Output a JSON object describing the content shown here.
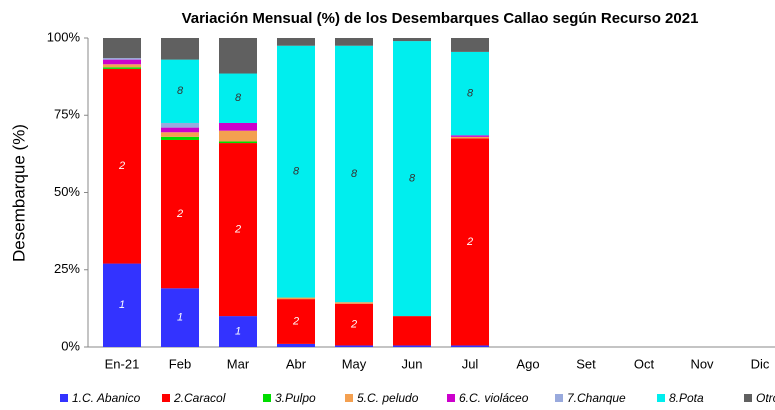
{
  "chart_data": {
    "type": "stacked_bar",
    "title": "Variación Mensual (%) de los Desembarques Callao según Recurso 2021",
    "y_label": "Desembarque (%)",
    "categories": [
      "En-21",
      "Feb",
      "Mar",
      "Abr",
      "May",
      "Jun",
      "Jul",
      "Ago",
      "Set",
      "Oct",
      "Nov",
      "Dic"
    ],
    "ylim": [
      0,
      100
    ],
    "yticks": [
      {
        "value": 0,
        "label": "0%"
      },
      {
        "value": 25,
        "label": "25%"
      },
      {
        "value": 50,
        "label": "50%"
      },
      {
        "value": 75,
        "label": "75%"
      },
      {
        "value": 100,
        "label": "100%"
      }
    ],
    "grid": false,
    "legend": "bottom",
    "series": [
      {
        "name": "1.C. Abanico",
        "label": "1",
        "color": "#3333ff",
        "values": [
          27,
          19,
          10,
          1,
          0.5,
          0.5,
          0.5,
          null,
          null,
          null,
          null,
          null
        ]
      },
      {
        "name": "2.Caracol",
        "label": "2",
        "color": "#ff0000",
        "values": [
          63,
          48,
          56,
          14.5,
          13.5,
          9.5,
          67,
          null,
          null,
          null,
          null,
          null
        ]
      },
      {
        "name": "3.Pulpo",
        "color": "#00dd00",
        "values": [
          0.5,
          1,
          0.5,
          0,
          0,
          0,
          0,
          null,
          null,
          null,
          null,
          null
        ]
      },
      {
        "name": "5.C. peludo",
        "color": "#f4a050",
        "values": [
          1,
          1.5,
          3.5,
          0.5,
          0.5,
          0,
          0.5,
          null,
          null,
          null,
          null,
          null
        ]
      },
      {
        "name": "6.C. violáceo",
        "color": "#cc00cc",
        "values": [
          1.5,
          1.5,
          2.5,
          0,
          0,
          0,
          0.5,
          null,
          null,
          null,
          null,
          null
        ]
      },
      {
        "name": "7.Chanque",
        "color": "#99aadd",
        "values": [
          0.5,
          1.5,
          0,
          0,
          0,
          0,
          0,
          null,
          null,
          null,
          null,
          null
        ]
      },
      {
        "name": "8.Pota",
        "label": "8",
        "color": "#00eeee",
        "values": [
          0,
          20.5,
          16,
          81.5,
          83,
          89,
          27,
          null,
          null,
          null,
          null,
          null
        ]
      },
      {
        "name": "Otros",
        "color": "#606060",
        "values": [
          6.5,
          7,
          11.5,
          2.5,
          2.5,
          1,
          4.5,
          null,
          null,
          null,
          null,
          null
        ]
      }
    ]
  }
}
